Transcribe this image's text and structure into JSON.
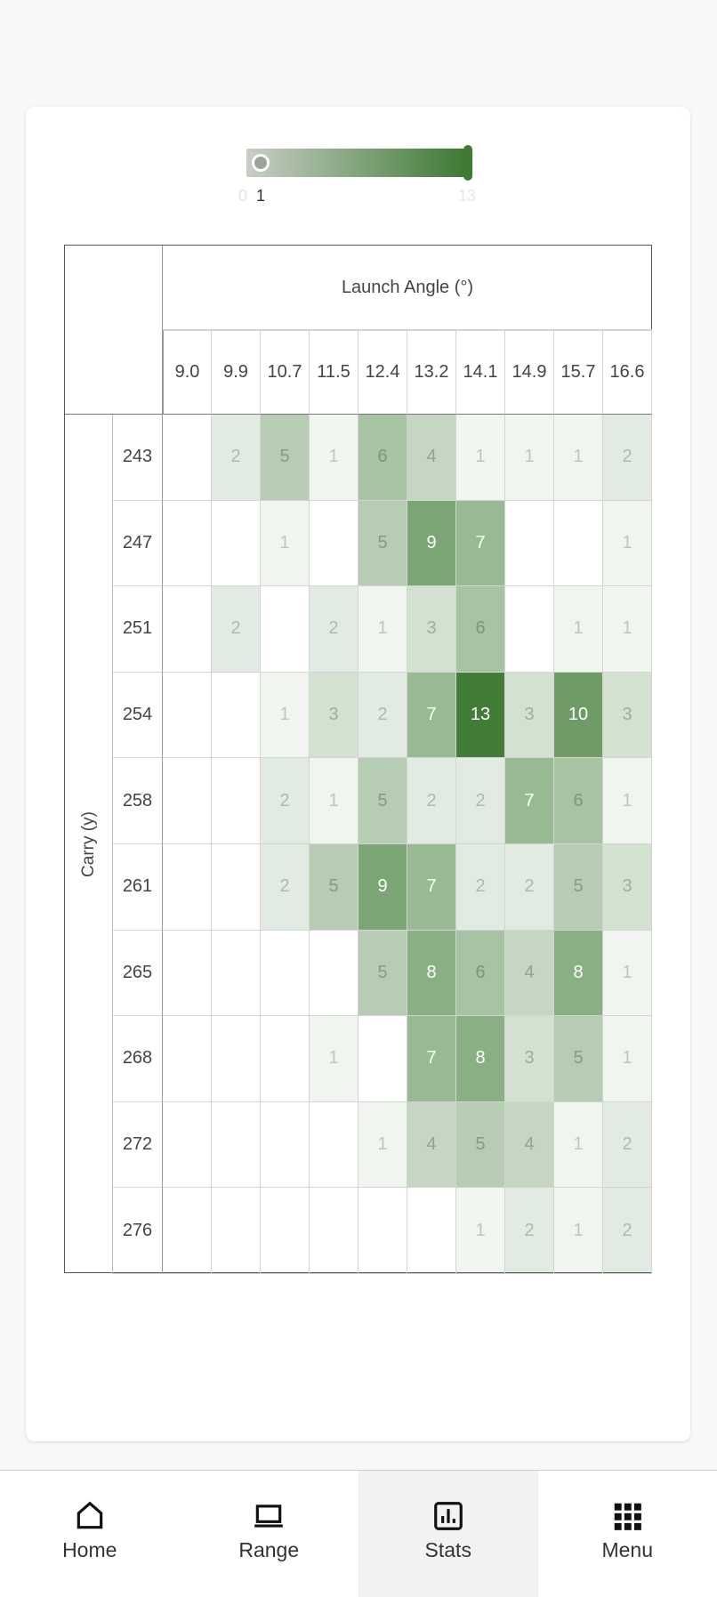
{
  "slider": {
    "min_label": "0",
    "value_label": "1",
    "max_label": "13",
    "range_min": 0,
    "range_max": 13,
    "selected_min": 1,
    "selected_max": 13
  },
  "colors": {
    "accent": "#3e7a34"
  },
  "heatmap": {
    "x_title": "Launch Angle (°)",
    "y_title": "Carry (y)",
    "columns": [
      "9.0",
      "9.9",
      "10.7",
      "11.5",
      "12.4",
      "13.2",
      "14.1",
      "14.9",
      "15.7",
      "16.6"
    ],
    "rows": [
      "243",
      "247",
      "251",
      "254",
      "258",
      "261",
      "265",
      "268",
      "272",
      "276"
    ],
    "values": [
      [
        null,
        2,
        5,
        1,
        6,
        4,
        1,
        1,
        1,
        2
      ],
      [
        null,
        null,
        1,
        null,
        5,
        9,
        7,
        null,
        null,
        1
      ],
      [
        null,
        2,
        null,
        2,
        1,
        3,
        6,
        null,
        1,
        1
      ],
      [
        null,
        null,
        1,
        3,
        2,
        7,
        13,
        3,
        10,
        3
      ],
      [
        null,
        null,
        2,
        1,
        5,
        2,
        2,
        7,
        6,
        1
      ],
      [
        null,
        null,
        2,
        5,
        9,
        7,
        2,
        2,
        5,
        3
      ],
      [
        null,
        null,
        null,
        null,
        5,
        8,
        6,
        4,
        8,
        1
      ],
      [
        null,
        null,
        null,
        1,
        null,
        7,
        8,
        3,
        5,
        1
      ],
      [
        null,
        null,
        null,
        null,
        1,
        4,
        5,
        4,
        1,
        2
      ],
      [
        null,
        null,
        null,
        null,
        null,
        null,
        1,
        2,
        1,
        2
      ]
    ]
  },
  "nav": [
    {
      "label": "Home",
      "icon": "home-icon"
    },
    {
      "label": "Range",
      "icon": "laptop-icon"
    },
    {
      "label": "Stats",
      "icon": "bar-chart-icon",
      "active": true
    },
    {
      "label": "Menu",
      "icon": "grid-icon"
    }
  ]
}
